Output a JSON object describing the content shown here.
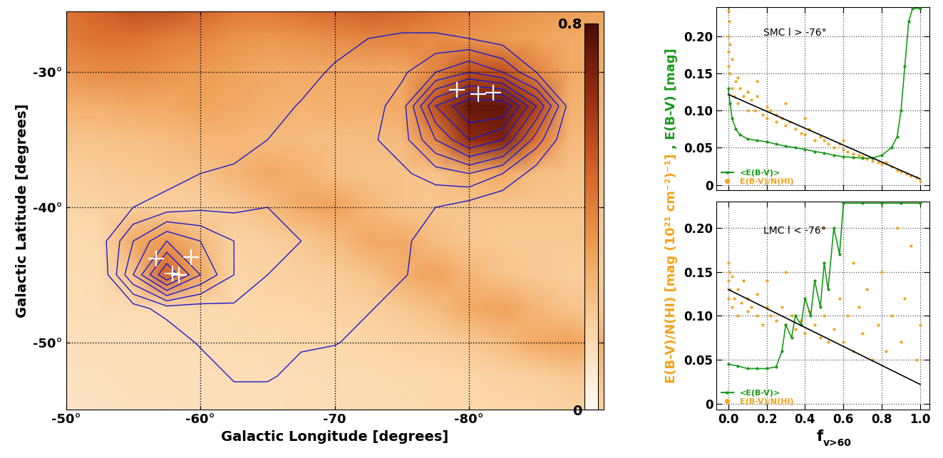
{
  "chart_data": [
    {
      "type": "heatmap",
      "xlabel": "Galactic Longitude [degrees]",
      "ylabel": "Galactic Latitude [degrees]",
      "xlim": [
        -50,
        -90
      ],
      "ylim": [
        -55,
        -25.5
      ],
      "xticks": [
        {
          "value": -50,
          "label": "-50°"
        },
        {
          "value": -60,
          "label": "-60°"
        },
        {
          "value": -70,
          "label": "-70"
        },
        {
          "value": -80,
          "label": "-80°"
        }
      ],
      "yticks": [
        {
          "value": -30,
          "label": "-30°"
        },
        {
          "value": -40,
          "label": "-40°"
        },
        {
          "value": -50,
          "label": "-50°"
        }
      ],
      "grid": true,
      "x": [
        -50,
        -52.5,
        -55,
        -57.5,
        -60,
        -62.5,
        -65,
        -67.5,
        -70,
        -72.5,
        -75,
        -77.5,
        -80,
        -82.5,
        -85,
        -87.5,
        -90
      ],
      "y": [
        -55,
        -52.5,
        -50,
        -47.5,
        -45,
        -42.5,
        -40,
        -37.5,
        -35,
        -32.5,
        -30,
        -27.5,
        -25
      ],
      "cells": [
        [
          0.1,
          0.1,
          0.11,
          0.11,
          0.12,
          0.12,
          0.12,
          0.13,
          0.13,
          0.14,
          0.14,
          0.15,
          0.15,
          0.16,
          0.16,
          0.17,
          0.17
        ],
        [
          0.11,
          0.11,
          0.12,
          0.12,
          0.12,
          0.13,
          0.13,
          0.13,
          0.14,
          0.14,
          0.15,
          0.15,
          0.16,
          0.17,
          0.18,
          0.2,
          0.22
        ],
        [
          0.12,
          0.12,
          0.12,
          0.13,
          0.13,
          0.14,
          0.14,
          0.15,
          0.15,
          0.16,
          0.17,
          0.18,
          0.2,
          0.24,
          0.3,
          0.32,
          0.28
        ],
        [
          0.13,
          0.13,
          0.14,
          0.14,
          0.15,
          0.15,
          0.16,
          0.16,
          0.17,
          0.18,
          0.2,
          0.24,
          0.3,
          0.32,
          0.26,
          0.22,
          0.2
        ],
        [
          0.13,
          0.14,
          0.22,
          0.5,
          0.3,
          0.16,
          0.17,
          0.18,
          0.19,
          0.22,
          0.28,
          0.32,
          0.26,
          0.22,
          0.2,
          0.19,
          0.19
        ],
        [
          0.14,
          0.15,
          0.3,
          0.35,
          0.25,
          0.17,
          0.18,
          0.2,
          0.24,
          0.3,
          0.3,
          0.24,
          0.21,
          0.2,
          0.2,
          0.2,
          0.2
        ],
        [
          0.16,
          0.17,
          0.18,
          0.18,
          0.18,
          0.2,
          0.24,
          0.3,
          0.32,
          0.26,
          0.22,
          0.21,
          0.21,
          0.21,
          0.21,
          0.21,
          0.21
        ],
        [
          0.18,
          0.19,
          0.2,
          0.21,
          0.22,
          0.26,
          0.3,
          0.28,
          0.24,
          0.22,
          0.22,
          0.22,
          0.28,
          0.3,
          0.24,
          0.22,
          0.22
        ],
        [
          0.22,
          0.22,
          0.23,
          0.24,
          0.26,
          0.26,
          0.25,
          0.24,
          0.24,
          0.24,
          0.25,
          0.4,
          0.65,
          0.7,
          0.45,
          0.25,
          0.24
        ],
        [
          0.28,
          0.28,
          0.3,
          0.3,
          0.32,
          0.3,
          0.28,
          0.27,
          0.28,
          0.28,
          0.3,
          0.55,
          0.75,
          0.75,
          0.6,
          0.28,
          0.26
        ],
        [
          0.36,
          0.38,
          0.38,
          0.36,
          0.34,
          0.32,
          0.3,
          0.3,
          0.3,
          0.3,
          0.3,
          0.4,
          0.55,
          0.55,
          0.4,
          0.3,
          0.28
        ],
        [
          0.42,
          0.45,
          0.45,
          0.42,
          0.4,
          0.36,
          0.35,
          0.36,
          0.38,
          0.4,
          0.4,
          0.38,
          0.36,
          0.34,
          0.32,
          0.3,
          0.3
        ],
        [
          0.45,
          0.5,
          0.55,
          0.55,
          0.5,
          0.45,
          0.45,
          0.48,
          0.5,
          0.52,
          0.5,
          0.46,
          0.42,
          0.38,
          0.36,
          0.34,
          0.32
        ]
      ],
      "colorbar_range": [
        0,
        0.8
      ],
      "colorbar_ticks": [
        0,
        0.8
      ],
      "contours": {
        "color": "#1a1acc",
        "levels": [
          1,
          2,
          3,
          4,
          5,
          6,
          7,
          8
        ],
        "values": [
          [
            0,
            0,
            0,
            0,
            0,
            0,
            0,
            0,
            0,
            0,
            0,
            0,
            0,
            0,
            0,
            0,
            0
          ],
          [
            0,
            0,
            0,
            0,
            0,
            1.2,
            1.2,
            0.5,
            0,
            0,
            0,
            0,
            0,
            0,
            0,
            0,
            0
          ],
          [
            0,
            0,
            0,
            0,
            1.2,
            1.5,
            1.3,
            1.2,
            1.1,
            0.5,
            0,
            0,
            0,
            0,
            0,
            0,
            0
          ],
          [
            0,
            0,
            0.5,
            1.5,
            1.5,
            1.8,
            1.5,
            1.5,
            1.3,
            1.1,
            0.5,
            0,
            0,
            0,
            0,
            0,
            0
          ],
          [
            0,
            0,
            4,
            8,
            5,
            3,
            2,
            1.8,
            1.5,
            1.3,
            1.1,
            0.5,
            0,
            0,
            0,
            0,
            0
          ],
          [
            0,
            0.5,
            3,
            5,
            4,
            3,
            2.5,
            2,
            1.8,
            1.5,
            1.2,
            0.5,
            0,
            0,
            0,
            0,
            0
          ],
          [
            0,
            0,
            1,
            1.5,
            1.8,
            1.8,
            2,
            2,
            1.8,
            1.5,
            1.2,
            1,
            0.5,
            0,
            0,
            0,
            0
          ],
          [
            0,
            0,
            0,
            0.5,
            1,
            1.2,
            1.3,
            1.5,
            2,
            2,
            1.8,
            2.5,
            3,
            2,
            0.5,
            0,
            0
          ],
          [
            0,
            0,
            0,
            0,
            0,
            0.5,
            1,
            1.2,
            1.5,
            1.8,
            2.5,
            5,
            7,
            6,
            2.5,
            0,
            0
          ],
          [
            0,
            0,
            0,
            0,
            0,
            0,
            0.5,
            1.1,
            1.3,
            1.5,
            2.5,
            7,
            9,
            9,
            5,
            0.5,
            0
          ],
          [
            0,
            0,
            0,
            0,
            0,
            0,
            0,
            0.5,
            1.2,
            1.5,
            1.8,
            3,
            4,
            3,
            1,
            0,
            0
          ],
          [
            0,
            0,
            0,
            0,
            0,
            0,
            0,
            0,
            0.5,
            1,
            1.2,
            1.2,
            1,
            0.5,
            0,
            0,
            0
          ],
          [
            0,
            0,
            0,
            0,
            0,
            0,
            0,
            0,
            0,
            0,
            0,
            0,
            0,
            0,
            0,
            0,
            0
          ]
        ]
      },
      "series": [
        {
          "type": "scatter",
          "marker": "+",
          "color": "white",
          "x": [
            -79.1,
            -80.7,
            -81.8,
            -56.7,
            -57.9,
            -58.4,
            -59.3
          ],
          "values": [
            -31.3,
            -31.6,
            -31.5,
            -43.8,
            -44.9,
            -45.0,
            -43.7
          ]
        }
      ]
    },
    {
      "type": "scatter",
      "annotation": "SMC l > -76°",
      "xlim": [
        -0.06,
        1.05
      ],
      "ylim": [
        -0.007,
        0.24
      ],
      "xticks": [
        {
          "value": 0,
          "label": "0.0"
        },
        0.2,
        0.4,
        0.6,
        0.8,
        1.0
      ],
      "yticks": [
        0,
        0.05,
        {
          "value": 0.1,
          "label": "0.10"
        },
        0.15,
        {
          "value": 0.2,
          "label": "0.20"
        }
      ],
      "tick_labels": "y",
      "grid": true,
      "legend": "lower left",
      "series": [
        {
          "name": "<E(B-V)>",
          "type": "line",
          "color": "#1a9a1a",
          "marker": ".",
          "x": [
            0.0,
            0.01,
            0.02,
            0.04,
            0.06,
            0.1,
            0.15,
            0.2,
            0.25,
            0.3,
            0.35,
            0.4,
            0.45,
            0.5,
            0.55,
            0.6,
            0.65,
            0.7,
            0.75,
            0.8,
            0.85,
            0.88,
            0.9,
            0.92,
            0.94,
            0.96,
            1.0
          ],
          "values": [
            0.13,
            0.11,
            0.09,
            0.075,
            0.068,
            0.062,
            0.06,
            0.058,
            0.055,
            0.052,
            0.05,
            0.048,
            0.045,
            0.043,
            0.04,
            0.038,
            0.037,
            0.036,
            0.036,
            0.04,
            0.05,
            0.065,
            0.1,
            0.16,
            0.22,
            0.238,
            0.238
          ]
        },
        {
          "name": "E(B-V)/N(HI)",
          "type": "scatter",
          "color": "#f5a31a",
          "marker": "o",
          "x": [
            0,
            0,
            0,
            0,
            0.005,
            0.01,
            0.01,
            0.02,
            0.02,
            0.03,
            0.04,
            0.05,
            0.06,
            0.08,
            0.1,
            0.1,
            0.12,
            0.14,
            0.15,
            0.18,
            0.2,
            0.2,
            0.22,
            0.25,
            0.25,
            0.28,
            0.3,
            0.32,
            0.35,
            0.38,
            0.4,
            0.42,
            0.45,
            0.48,
            0.5,
            0.52,
            0.55,
            0.58,
            0.6,
            0.62,
            0.65,
            0.68,
            0.7,
            0.72,
            0.75,
            0.78,
            0.8,
            0.82,
            0.85,
            0.88,
            0.9,
            0.93,
            0.95,
            0.98,
            1.0,
            0.3,
            0.15,
            0.4,
            0.6,
            0.05
          ],
          "values": [
            0.235,
            0.2,
            0.18,
            0.16,
            0.22,
            0.15,
            0.19,
            0.13,
            0.17,
            0.12,
            0.14,
            0.11,
            0.13,
            0.12,
            0.1,
            0.125,
            0.115,
            0.1,
            0.12,
            0.095,
            0.105,
            0.09,
            0.1,
            0.085,
            0.095,
            0.09,
            0.08,
            0.085,
            0.075,
            0.07,
            0.068,
            0.075,
            0.06,
            0.065,
            0.06,
            0.055,
            0.05,
            0.055,
            0.048,
            0.045,
            0.042,
            0.04,
            0.038,
            0.035,
            0.032,
            0.03,
            0.028,
            0.03,
            0.025,
            0.02,
            0.018,
            0.015,
            0.012,
            0.01,
            0.005,
            0.11,
            0.14,
            0.09,
            0.06,
            0.145
          ]
        },
        {
          "type": "line",
          "color": "black",
          "x": [
            0,
            1
          ],
          "values": [
            0.122,
            0.008
          ]
        }
      ]
    },
    {
      "type": "scatter",
      "annotation": "LMC l < -76°",
      "xlabel": "f",
      "xlabel_subscript": "v>60",
      "ylabel": "E(B-V)/N(HI) [mag (10²¹ cm⁻²)⁻¹]",
      "ylabel_second": ", E(B-V) [mag]",
      "xlim": [
        -0.06,
        1.05
      ],
      "ylim": [
        -0.007,
        0.23
      ],
      "xticks": [
        {
          "value": 0,
          "label": "0.0"
        },
        0.2,
        0.4,
        0.6,
        0.8,
        1.0
      ],
      "yticks": [
        0,
        0.05,
        {
          "value": 0.1,
          "label": "0.10"
        },
        0.15,
        {
          "value": 0.2,
          "label": "0.20"
        }
      ],
      "grid": true,
      "legend": "lower left",
      "series": [
        {
          "name": "<E(B-V)>",
          "type": "line",
          "color": "#1a9a1a",
          "marker": ".",
          "x": [
            0,
            0.05,
            0.1,
            0.15,
            0.2,
            0.25,
            0.28,
            0.3,
            0.33,
            0.35,
            0.38,
            0.4,
            0.43,
            0.45,
            0.48,
            0.5,
            0.52,
            0.55,
            0.58,
            0.6,
            0.7,
            0.8,
            0.9,
            1.0
          ],
          "values": [
            0.045,
            0.043,
            0.04,
            0.04,
            0.04,
            0.042,
            0.06,
            0.09,
            0.075,
            0.1,
            0.09,
            0.12,
            0.1,
            0.14,
            0.11,
            0.16,
            0.13,
            0.2,
            0.17,
            0.228,
            0.228,
            0.228,
            0.228,
            0.228
          ]
        },
        {
          "name": "E(B-V)/N(HI)",
          "type": "scatter",
          "color": "#f5a31a",
          "marker": "o",
          "x": [
            0,
            0,
            0,
            0.005,
            0.01,
            0.02,
            0.02,
            0.03,
            0.05,
            0.05,
            0.07,
            0.08,
            0.1,
            0.1,
            0.12,
            0.15,
            0.15,
            0.18,
            0.2,
            0.22,
            0.25,
            0.28,
            0.3,
            0.33,
            0.35,
            0.38,
            0.4,
            0.42,
            0.45,
            0.48,
            0.5,
            0.52,
            0.55,
            0.58,
            0.6,
            0.62,
            0.65,
            0.68,
            0.7,
            0.72,
            0.75,
            0.78,
            0.8,
            0.82,
            0.85,
            0.88,
            0.9,
            0.92,
            0.95,
            0.98,
            1.0,
            0.5,
            0.3,
            0.2,
            0.65
          ],
          "values": [
            0.16,
            0.14,
            0.12,
            0.15,
            0.13,
            0.11,
            0.145,
            0.12,
            0.13,
            0.1,
            0.115,
            0.14,
            0.12,
            0.105,
            0.11,
            0.1,
            0.125,
            0.09,
            0.11,
            0.1,
            0.095,
            0.11,
            0.09,
            0.1,
            0.085,
            0.095,
            0.08,
            0.105,
            0.09,
            0.075,
            0.1,
            0.07,
            0.085,
            0.12,
            0.07,
            0.1,
            0.06,
            0.11,
            0.08,
            0.13,
            0.05,
            0.09,
            0.15,
            0.06,
            0.1,
            0.2,
            0.07,
            0.12,
            0.18,
            0.05,
            0.09,
            0.2,
            0.15,
            0.14,
            0.16
          ]
        },
        {
          "type": "line",
          "color": "black",
          "x": [
            0,
            1
          ],
          "values": [
            0.13,
            0.022
          ]
        }
      ]
    }
  ]
}
